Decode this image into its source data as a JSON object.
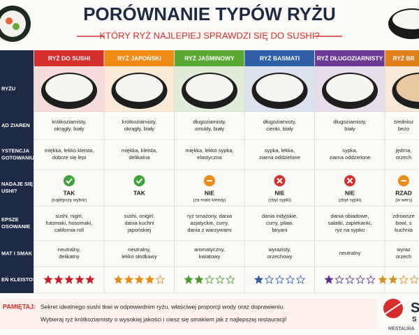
{
  "header": {
    "title": "PORÓWNANIE TYPÓW RYŻU",
    "subtitle": "KTÓRY RYŻ NAJLEPIEJ SPRAWDZI SIĘ DO SUSHI?"
  },
  "row_labels": [
    [
      "RYŻU"
    ],
    [
      "ĄD ZIAREN"
    ],
    [
      "YSTENCJA",
      "GOTOWANIU"
    ],
    [
      "NADAJE SIĘ",
      "USHI?"
    ],
    [
      "EPSZE",
      "OSOWANIE"
    ],
    [
      "MAT I SMAK"
    ],
    [
      "EŃ KLEISTOŚCI"
    ]
  ],
  "columns": [
    {
      "name": "RYŻ DO SUSHI",
      "color": "#d62d2d",
      "grain": [
        "krótkoziarnisty,",
        "okrągły, biały"
      ],
      "texture": [
        "miękka, lekko kleista,",
        "dobrze się lepi"
      ],
      "verdict": "TAK",
      "note": "(najlepszy wybór)",
      "icon": "ok",
      "use": [
        "sushi, nigiri,",
        "futomaki, hosomaki,",
        "california roll"
      ],
      "taste": [
        "neutralny,",
        "delikatny"
      ],
      "stickiness": 5,
      "star_color": "#c8202a"
    },
    {
      "name": "RYŻ JAPOŃSKI",
      "color": "#ef8a14",
      "grain": [
        "krótkoziarnisty,",
        "okrągły, biały"
      ],
      "texture": [
        "miękka, kleista,",
        "delikatna"
      ],
      "verdict": "TAK",
      "note": null,
      "icon": "ok",
      "use": [
        "sushi, onigiri,",
        "dania kuchni",
        "japońskiej"
      ],
      "taste": [
        "neutralny,",
        "lekko słodkawy"
      ],
      "stickiness": 4,
      "star_color": "#e88a14"
    },
    {
      "name": "RYŻ JAŚMINOWY",
      "color": "#5aa832",
      "grain": [
        "długoziarnisty,",
        "smukły, biały"
      ],
      "texture": [
        "miękka, lekko sypka,",
        "elastyczna"
      ],
      "verdict": "NIE",
      "note": "(za mało kleisty)",
      "icon": "partial",
      "use": [
        "ryż smażony, dania",
        "azjatyckie, curry,",
        "dania z warzywami"
      ],
      "taste": [
        "aromatyczny,",
        "kwiatowy"
      ],
      "stickiness": 2,
      "star_color": "#4a9a2a"
    },
    {
      "name": "RYŻ BASMATI",
      "color": "#2f5ea8",
      "grain": [
        "długoziarnisty,",
        "cienki, biały"
      ],
      "texture": [
        "sypka, lekka,",
        "ziarna oddzielone"
      ],
      "verdict": "NIE",
      "note": "(zbyt sypki)",
      "icon": "no",
      "use": [
        "dania indyjskie,",
        "curry, pilaw,",
        "biryani"
      ],
      "taste": [
        "wyrazisty,",
        "orzechowy"
      ],
      "stickiness": 1,
      "star_color": "#2f5ea8"
    },
    {
      "name": "RYŻ DŁUGOZIARNISTY",
      "color": "#6a3a96",
      "grain": [
        "długoziarnisty,",
        "biały"
      ],
      "texture": [
        "sypka,",
        "ziarna oddzielone"
      ],
      "verdict": "NIE",
      "note": "(zbyt sypki)",
      "icon": "no",
      "use": [
        "dania obiadowe,",
        "sałatki, zapiekanki,",
        "ryż na sypko"
      ],
      "taste": [
        "neutralny"
      ],
      "stickiness": 1,
      "star_color": "#5a3088"
    },
    {
      "name": "RYŻ BR",
      "color": "#e07f1a",
      "grain": [
        "średnioz",
        "beżo"
      ],
      "texture": [
        "jędrna,",
        "orzech"
      ],
      "verdict": "RZAD",
      "note": "(w wersj",
      "icon": "partial",
      "use": [
        "zdrowsze",
        "bowl, s",
        "kuchnia"
      ],
      "taste": [
        "wyraz",
        "orzech"
      ],
      "stickiness": 2,
      "star_color": "#d09020"
    }
  ],
  "footer": {
    "label": "PAMIĘTAJ:",
    "lines": [
      "Sekret idealnego sushi tkwi w odpowiednim ryżu, właściwej proporcji wody oraz doprawieniu.",
      "Wybieraj ryż krótkoziarnisty o wysokiej jakości i ciesz się smakiem jak z najlepszej restauracji!"
    ]
  },
  "logo": {
    "mark": "S",
    "name": "S",
    "tagline": "RESTAURA"
  }
}
